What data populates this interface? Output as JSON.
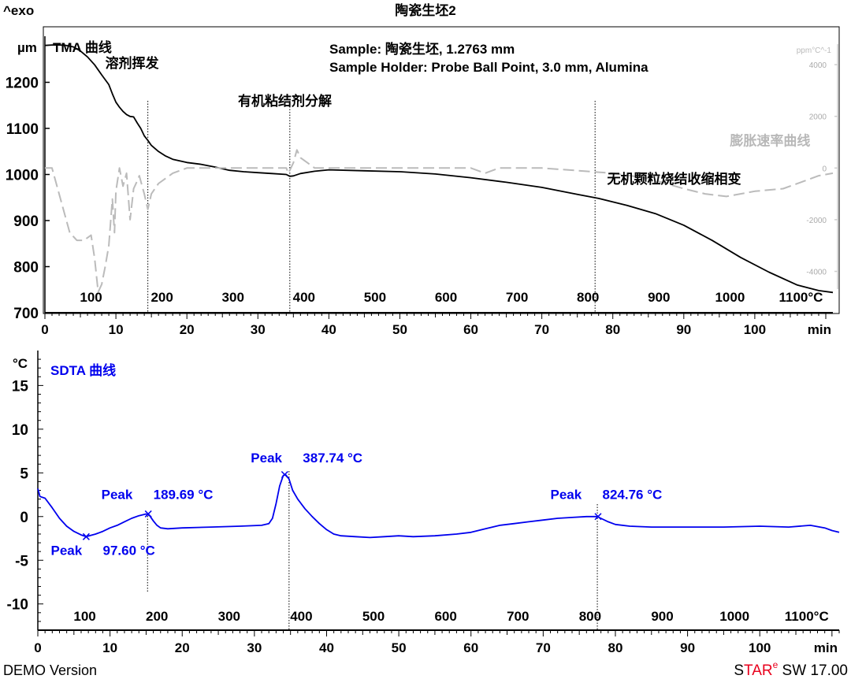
{
  "header": {
    "exo_label": "^exo",
    "title": "陶瓷生坯2",
    "demo_label": "DEMO Version",
    "software": {
      "s": "S",
      "tar": "TAR",
      "e": "e",
      "rest": " SW 17.00"
    }
  },
  "colors": {
    "tma": "#000000",
    "rate": "#bbbbbb",
    "sdta": "#0000ee",
    "star_red": "#e8001c",
    "axis": "#000000"
  },
  "chart_data": [
    {
      "type": "line",
      "name": "top-panel",
      "title": "TMA 曲线",
      "ylabel": "µm",
      "xlabel": "min",
      "xlim": [
        0,
        111
      ],
      "ylim": [
        700,
        1300
      ],
      "y_ticks": [
        700,
        800,
        900,
        1000,
        1100,
        1200
      ],
      "x_ticks": [
        0,
        10,
        20,
        30,
        40,
        50,
        60,
        70,
        80,
        90,
        100
      ],
      "temp_ticks": [
        {
          "label": "100",
          "t": 6.5
        },
        {
          "label": "200",
          "t": 16.5
        },
        {
          "label": "300",
          "t": 26.5
        },
        {
          "label": "400",
          "t": 36.5
        },
        {
          "label": "500",
          "t": 46.5
        },
        {
          "label": "600",
          "t": 56.5
        },
        {
          "label": "700",
          "t": 66.5
        },
        {
          "label": "800",
          "t": 76.5
        },
        {
          "label": "900",
          "t": 86.5
        },
        {
          "label": "1000",
          "t": 96.5
        },
        {
          "label": "1100°C",
          "t": 106.5
        }
      ],
      "right_axis": {
        "label": "ppm°C^-1",
        "ticks": [
          4000,
          2000,
          0,
          -2000,
          -4000
        ],
        "ylim": [
          -5600,
          5100
        ]
      },
      "sample_info": [
        "Sample: 陶瓷生坯, 1.2763 mm",
        "Sample Holder: Probe Ball Point, 3.0 mm, Alumina"
      ],
      "annotations": [
        {
          "text": "溶剂挥发",
          "x": 8.5,
          "y": 1232
        },
        {
          "text": "有机粘结剂分解",
          "x": 27.2,
          "y": 1150
        },
        {
          "text": "膨胀速率曲线",
          "x": 96.5,
          "y": 1063,
          "muted": true
        },
        {
          "text": "无机颗粒烧结收缩相变",
          "x": 79.2,
          "y": 980
        }
      ],
      "vlines": [
        14.5,
        34.5,
        77.5
      ],
      "series": [
        {
          "name": "TMA 曲线",
          "color": "#000000",
          "points": [
            [
              0,
              1280
            ],
            [
              1,
              1281
            ],
            [
              2,
              1281
            ],
            [
              3,
              1280
            ],
            [
              4,
              1277
            ],
            [
              5,
              1268
            ],
            [
              6,
              1255
            ],
            [
              7,
              1238
            ],
            [
              8,
              1216
            ],
            [
              9,
              1195
            ],
            [
              9.5,
              1175
            ],
            [
              10,
              1157
            ],
            [
              10.5,
              1146
            ],
            [
              11,
              1137
            ],
            [
              11.5,
              1130
            ],
            [
              12,
              1126
            ],
            [
              12.5,
              1125
            ],
            [
              13,
              1112
            ],
            [
              13.5,
              1100
            ],
            [
              14,
              1084
            ],
            [
              14.5,
              1074
            ],
            [
              15,
              1063
            ],
            [
              16,
              1050
            ],
            [
              17,
              1040
            ],
            [
              18,
              1033
            ],
            [
              20,
              1026
            ],
            [
              22,
              1022
            ],
            [
              24,
              1016
            ],
            [
              26,
              1009
            ],
            [
              28,
              1006
            ],
            [
              30,
              1004
            ],
            [
              32,
              1002
            ],
            [
              34,
              1000
            ],
            [
              34.5,
              996
            ],
            [
              35,
              997
            ],
            [
              36,
              1002
            ],
            [
              38,
              1007
            ],
            [
              40,
              1010
            ],
            [
              45,
              1008
            ],
            [
              50,
              1006
            ],
            [
              55,
              1001
            ],
            [
              60,
              993
            ],
            [
              65,
              983
            ],
            [
              70,
              972
            ],
            [
              75,
              957
            ],
            [
              78,
              948
            ],
            [
              82,
              933
            ],
            [
              86,
              915
            ],
            [
              90,
              890
            ],
            [
              94,
              857
            ],
            [
              98,
              820
            ],
            [
              102,
              788
            ],
            [
              106,
              760
            ],
            [
              109,
              748
            ],
            [
              111,
              744
            ]
          ]
        },
        {
          "name": "膨胀速率曲线",
          "color": "#bbbbbb",
          "axis": "right",
          "points": [
            [
              0,
              0
            ],
            [
              1,
              0
            ],
            [
              1.5,
              -500
            ],
            [
              2.5,
              -1500
            ],
            [
              3.5,
              -2500
            ],
            [
              4.5,
              -2800
            ],
            [
              5.5,
              -2800
            ],
            [
              6.5,
              -2600
            ],
            [
              7,
              -3500
            ],
            [
              7.5,
              -4800
            ],
            [
              8,
              -4500
            ],
            [
              8.5,
              -3800
            ],
            [
              9,
              -3000
            ],
            [
              9.5,
              -1200
            ],
            [
              9.8,
              -2500
            ],
            [
              10,
              -900
            ],
            [
              10.5,
              0
            ],
            [
              11,
              -700
            ],
            [
              11.5,
              -200
            ],
            [
              12,
              -2000
            ],
            [
              12.5,
              -800
            ],
            [
              13,
              -500
            ],
            [
              13.3,
              -300
            ],
            [
              14,
              -1000
            ],
            [
              14.5,
              -1600
            ],
            [
              15,
              -1000
            ],
            [
              16,
              -600
            ],
            [
              18,
              -200
            ],
            [
              20,
              0
            ],
            [
              22,
              0
            ],
            [
              24,
              0
            ],
            [
              25,
              0
            ],
            [
              26,
              0
            ],
            [
              28,
              0
            ],
            [
              30,
              0
            ],
            [
              32,
              0
            ],
            [
              34,
              0
            ],
            [
              34.3,
              -200
            ],
            [
              35,
              200
            ],
            [
              35.5,
              700
            ],
            [
              36,
              400
            ],
            [
              37,
              200
            ],
            [
              38,
              0
            ],
            [
              40,
              0
            ],
            [
              45,
              0
            ],
            [
              50,
              0
            ],
            [
              55,
              0
            ],
            [
              60,
              0
            ],
            [
              62,
              -200
            ],
            [
              64,
              0
            ],
            [
              70,
              0
            ],
            [
              75,
              -100
            ],
            [
              80,
              -200
            ],
            [
              85,
              -400
            ],
            [
              90,
              -800
            ],
            [
              93,
              -1000
            ],
            [
              96,
              -1100
            ],
            [
              100,
              -900
            ],
            [
              104,
              -800
            ],
            [
              107,
              -500
            ],
            [
              109,
              -300
            ],
            [
              111,
              -200
            ]
          ]
        }
      ]
    },
    {
      "type": "line",
      "name": "bottom-panel",
      "title": "SDTA 曲线",
      "ylabel": "°C",
      "xlabel": "min",
      "xlim": [
        0,
        111
      ],
      "ylim": [
        -13,
        19
      ],
      "y_ticks": [
        -10,
        -5,
        0,
        5,
        10,
        15
      ],
      "x_ticks": [
        0,
        10,
        20,
        30,
        40,
        50,
        60,
        70,
        80,
        90,
        100
      ],
      "temp_ticks": [
        {
          "label": "100",
          "t": 6.5
        },
        {
          "label": "200",
          "t": 16.5
        },
        {
          "label": "300",
          "t": 26.5
        },
        {
          "label": "400",
          "t": 36.5
        },
        {
          "label": "500",
          "t": 46.5
        },
        {
          "label": "600",
          "t": 56.5
        },
        {
          "label": "700",
          "t": 66.5
        },
        {
          "label": "800",
          "t": 76.5
        },
        {
          "label": "900",
          "t": 86.5
        },
        {
          "label": "1000",
          "t": 96.5
        },
        {
          "label": "1100°C",
          "t": 106.5
        }
      ],
      "peaks": [
        {
          "word": "Peak",
          "value": "97.60 °C",
          "t": 6.7,
          "y": -2.3,
          "label_x": 1.8,
          "label_y": -4.4
        },
        {
          "word": "Peak",
          "value": "189.69 °C",
          "t": 15.3,
          "y": 0.3,
          "label_x": 8.8,
          "label_y": 2.0
        },
        {
          "word": "Peak",
          "value": "387.74 °C",
          "t": 34.2,
          "y": 4.8,
          "label_x": 29.5,
          "label_y": 6.2
        },
        {
          "word": "Peak",
          "value": "824.76 °C",
          "t": 77.6,
          "y": 0.0,
          "label_x": 71.0,
          "label_y": 2.0
        }
      ],
      "vlines": [
        15.2,
        34.8,
        77.5
      ],
      "series": [
        {
          "name": "SDTA 曲线",
          "color": "#0000ee",
          "points": [
            [
              0,
              3.2
            ],
            [
              0.3,
              2.3
            ],
            [
              1,
              2.1
            ],
            [
              2,
              1.0
            ],
            [
              3,
              -0.2
            ],
            [
              4,
              -1.1
            ],
            [
              5,
              -1.7
            ],
            [
              6,
              -2.1
            ],
            [
              6.7,
              -2.3
            ],
            [
              8,
              -2.0
            ],
            [
              9,
              -1.7
            ],
            [
              10,
              -1.3
            ],
            [
              11,
              -1.0
            ],
            [
              12,
              -0.6
            ],
            [
              13,
              -0.2
            ],
            [
              14,
              0.1
            ],
            [
              15,
              0.3
            ],
            [
              15.5,
              0.1
            ],
            [
              16,
              -0.5
            ],
            [
              16.5,
              -1.0
            ],
            [
              17,
              -1.3
            ],
            [
              18,
              -1.4
            ],
            [
              20,
              -1.3
            ],
            [
              24,
              -1.2
            ],
            [
              28,
              -1.1
            ],
            [
              31,
              -1.0
            ],
            [
              32,
              -0.8
            ],
            [
              32.5,
              -0.2
            ],
            [
              33,
              1.5
            ],
            [
              33.5,
              3.5
            ],
            [
              34,
              4.7
            ],
            [
              34.3,
              4.8
            ],
            [
              34.8,
              4.3
            ],
            [
              35.3,
              3.0
            ],
            [
              36,
              2.0
            ],
            [
              37,
              0.9
            ],
            [
              38,
              0.0
            ],
            [
              39,
              -0.8
            ],
            [
              40,
              -1.5
            ],
            [
              41,
              -2.0
            ],
            [
              42,
              -2.2
            ],
            [
              44,
              -2.3
            ],
            [
              46,
              -2.4
            ],
            [
              48,
              -2.3
            ],
            [
              50,
              -2.2
            ],
            [
              52,
              -2.3
            ],
            [
              55,
              -2.2
            ],
            [
              58,
              -2.0
            ],
            [
              60,
              -1.8
            ],
            [
              62,
              -1.4
            ],
            [
              64,
              -1.0
            ],
            [
              66,
              -0.8
            ],
            [
              68,
              -0.6
            ],
            [
              70,
              -0.4
            ],
            [
              72,
              -0.2
            ],
            [
              74,
              -0.1
            ],
            [
              76,
              0.0
            ],
            [
              77.5,
              0.0
            ],
            [
              78,
              -0.2
            ],
            [
              79,
              -0.6
            ],
            [
              80,
              -0.9
            ],
            [
              82,
              -1.1
            ],
            [
              85,
              -1.2
            ],
            [
              90,
              -1.2
            ],
            [
              95,
              -1.2
            ],
            [
              100,
              -1.1
            ],
            [
              104,
              -1.2
            ],
            [
              107,
              -1.0
            ],
            [
              109,
              -1.3
            ],
            [
              110,
              -1.6
            ],
            [
              111,
              -1.8
            ]
          ]
        }
      ]
    }
  ]
}
